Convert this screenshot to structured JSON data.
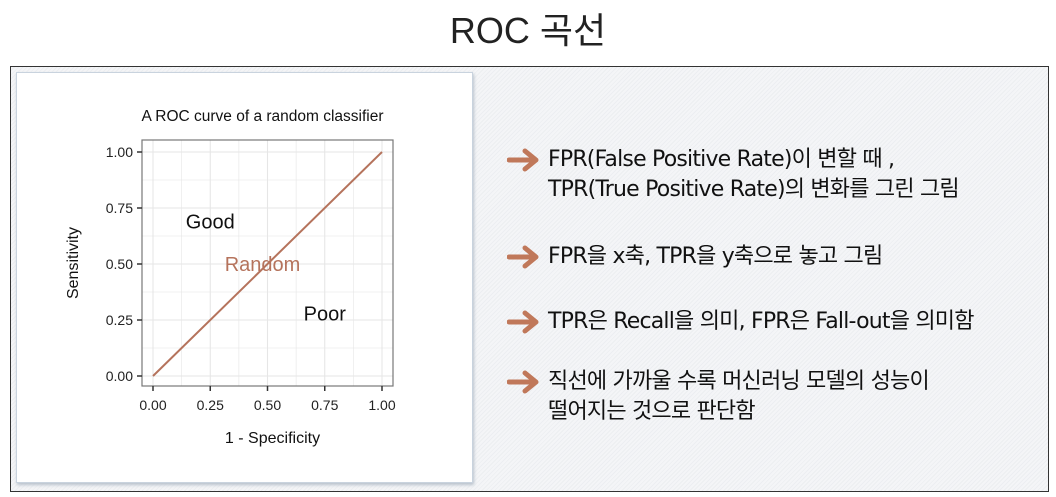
{
  "page_title": "ROC 곡선",
  "accent_color": "#c0785a",
  "chart_data": {
    "type": "line",
    "title": "A ROC curve of a random classifier",
    "xlabel": "1 - Specificity",
    "ylabel": "Sensitivity",
    "xlim": [
      0,
      1
    ],
    "ylim": [
      0,
      1
    ],
    "x_ticks": [
      "0.00",
      "0.25",
      "0.50",
      "0.75",
      "1.00"
    ],
    "y_ticks": [
      "0.00",
      "0.25",
      "0.50",
      "0.75",
      "1.00"
    ],
    "grid": true,
    "series": [
      {
        "name": "Random",
        "x": [
          0,
          1
        ],
        "y": [
          0,
          1
        ],
        "color": "#b5735c"
      }
    ],
    "annotations": [
      {
        "text": "Good",
        "x": 0.25,
        "y": 0.69,
        "color": "#111111"
      },
      {
        "text": "Random",
        "x": 0.5,
        "y": 0.5,
        "color": "#b5735c"
      },
      {
        "text": "Poor",
        "x": 0.75,
        "y": 0.28,
        "color": "#111111"
      }
    ]
  },
  "bullets": [
    {
      "lines": [
        "FPR(False Positive Rate)이 변할 때 ,",
        "TPR(True Positive Rate)의 변화를 그린 그림"
      ]
    },
    {
      "lines": [
        "FPR을 x축, TPR을 y축으로 놓고 그림"
      ]
    },
    {
      "lines": [
        "TPR은 Recall을 의미, FPR은 Fall-out을 의미함"
      ]
    },
    {
      "lines": [
        "직선에 가까울 수록 머신러닝 모델의 성능이",
        "떨어지는 것으로 판단함"
      ]
    }
  ]
}
